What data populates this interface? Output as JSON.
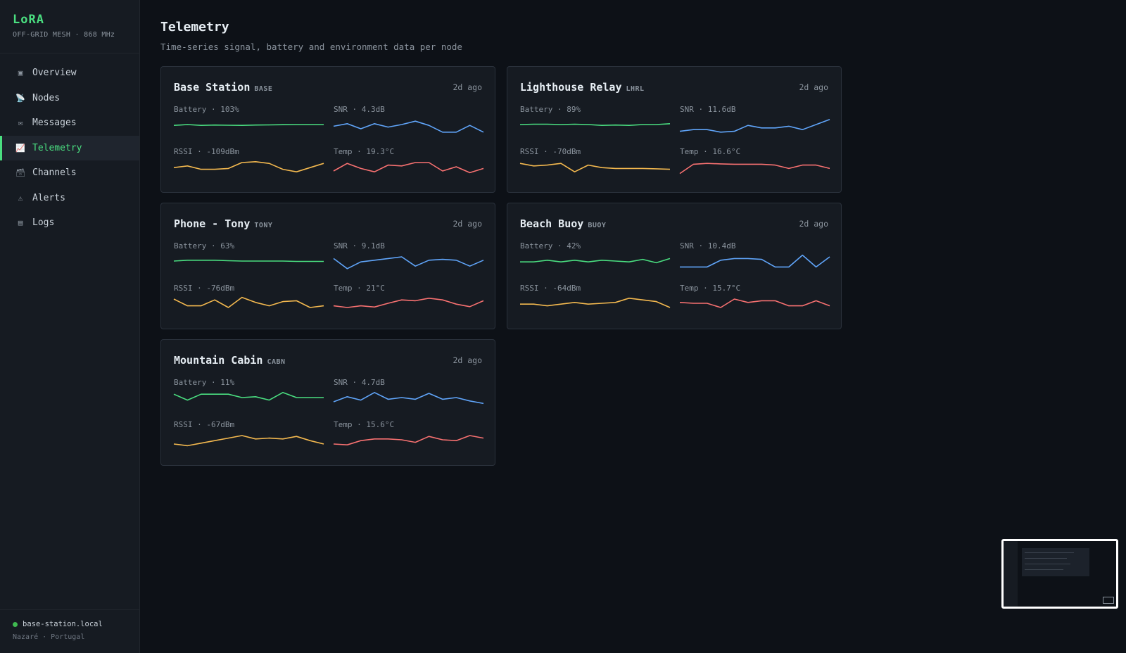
{
  "app": {
    "brand": "LoRA",
    "subtitle": "OFF-GRID MESH · 868 MHz",
    "host": "base-station.local",
    "location": "Nazaré · Portugal"
  },
  "nav": [
    {
      "key": "overview",
      "label": "Overview",
      "icon": "▣",
      "icon_name": "overview-icon"
    },
    {
      "key": "nodes",
      "label": "Nodes",
      "icon": "📡",
      "icon_name": "antenna-icon"
    },
    {
      "key": "messages",
      "label": "Messages",
      "icon": "✉",
      "icon_name": "envelope-icon"
    },
    {
      "key": "telemetry",
      "label": "Telemetry",
      "icon": "📈",
      "icon_name": "chart-icon",
      "active": true
    },
    {
      "key": "channels",
      "label": "Channels",
      "icon": "🗃",
      "icon_name": "channels-icon"
    },
    {
      "key": "alerts",
      "label": "Alerts",
      "icon": "⚠",
      "icon_name": "warning-icon"
    },
    {
      "key": "logs",
      "label": "Logs",
      "icon": "▤",
      "icon_name": "logs-icon"
    }
  ],
  "page": {
    "title": "Telemetry",
    "subtitle": "Time-series signal, battery and environment data per node"
  },
  "colors": {
    "battery": "#4ade80",
    "snr": "#60a5fa",
    "rssi": "#f4b94f",
    "temp": "#f87171",
    "accent": "#4ade80"
  },
  "nodes": [
    {
      "name": "Base Station",
      "tag": "BASE",
      "time": "2d ago",
      "battery": {
        "label": "Battery · 103%",
        "values": [
          0.55,
          0.5,
          0.55,
          0.53,
          0.54,
          0.55,
          0.53,
          0.52,
          0.51,
          0.5,
          0.5,
          0.5
        ]
      },
      "snr": {
        "label": "SNR · 4.3dB",
        "values": [
          0.6,
          0.45,
          0.75,
          0.45,
          0.65,
          0.5,
          0.3,
          0.55,
          0.95,
          0.95,
          0.55,
          0.95
        ]
      },
      "rssi": {
        "label": "RSSI · -109dBm",
        "values": [
          0.55,
          0.45,
          0.65,
          0.65,
          0.6,
          0.25,
          0.2,
          0.3,
          0.65,
          0.8,
          0.55,
          0.3
        ]
      },
      "temp": {
        "label": "Temp · 19.3°C",
        "values": [
          0.75,
          0.3,
          0.6,
          0.8,
          0.4,
          0.45,
          0.25,
          0.25,
          0.75,
          0.5,
          0.85,
          0.6
        ]
      }
    },
    {
      "name": "Lighthouse Relay",
      "tag": "LHRL",
      "time": "2d ago",
      "battery": {
        "label": "Battery · 89%",
        "values": [
          0.5,
          0.48,
          0.48,
          0.5,
          0.48,
          0.5,
          0.55,
          0.53,
          0.55,
          0.5,
          0.5,
          0.45
        ]
      },
      "snr": {
        "label": "SNR · 11.6dB",
        "values": [
          0.9,
          0.8,
          0.8,
          0.95,
          0.9,
          0.55,
          0.7,
          0.7,
          0.6,
          0.8,
          0.5,
          0.2
        ]
      },
      "rssi": {
        "label": "RSSI · -70dBm",
        "values": [
          0.3,
          0.45,
          0.4,
          0.3,
          0.8,
          0.4,
          0.55,
          0.6,
          0.6,
          0.6,
          0.62,
          0.65
        ]
      },
      "temp": {
        "label": "Temp · 16.6°C",
        "values": [
          0.9,
          0.35,
          0.3,
          0.33,
          0.35,
          0.35,
          0.35,
          0.4,
          0.6,
          0.4,
          0.4,
          0.6
        ]
      }
    },
    {
      "name": "Phone - Tony",
      "tag": "TONY",
      "time": "2d ago",
      "battery": {
        "label": "Battery · 63%",
        "values": [
          0.5,
          0.45,
          0.45,
          0.45,
          0.48,
          0.5,
          0.5,
          0.5,
          0.5,
          0.52,
          0.52,
          0.52
        ]
      },
      "snr": {
        "label": "SNR · 9.1dB",
        "values": [
          0.35,
          0.95,
          0.55,
          0.45,
          0.35,
          0.25,
          0.8,
          0.45,
          0.4,
          0.45,
          0.8,
          0.45
        ]
      },
      "rssi": {
        "label": "RSSI · -76dBm",
        "values": [
          0.25,
          0.65,
          0.65,
          0.3,
          0.75,
          0.15,
          0.45,
          0.65,
          0.4,
          0.35,
          0.75,
          0.65
        ]
      },
      "temp": {
        "label": "Temp · 21°C",
        "values": [
          0.65,
          0.75,
          0.65,
          0.72,
          0.5,
          0.3,
          0.35,
          0.2,
          0.3,
          0.55,
          0.7,
          0.35
        ]
      }
    },
    {
      "name": "Beach Buoy",
      "tag": "BUOY",
      "time": "2d ago",
      "battery": {
        "label": "Battery · 42%",
        "values": [
          0.55,
          0.55,
          0.45,
          0.55,
          0.45,
          0.55,
          0.45,
          0.5,
          0.55,
          0.4,
          0.6,
          0.35
        ]
      },
      "snr": {
        "label": "SNR · 10.4dB",
        "values": [
          0.85,
          0.85,
          0.85,
          0.45,
          0.35,
          0.35,
          0.4,
          0.85,
          0.85,
          0.15,
          0.85,
          0.25
        ]
      },
      "rssi": {
        "label": "RSSI · -64dBm",
        "values": [
          0.55,
          0.55,
          0.65,
          0.55,
          0.45,
          0.55,
          0.5,
          0.45,
          0.2,
          0.3,
          0.4,
          0.75
        ]
      },
      "temp": {
        "label": "Temp · 15.7°C",
        "values": [
          0.45,
          0.5,
          0.5,
          0.75,
          0.25,
          0.45,
          0.35,
          0.35,
          0.65,
          0.65,
          0.35,
          0.65
        ]
      }
    },
    {
      "name": "Mountain Cabin",
      "tag": "CABN",
      "time": "2d ago",
      "battery": {
        "label": "Battery · 11%",
        "values": [
          0.3,
          0.65,
          0.3,
          0.3,
          0.3,
          0.5,
          0.45,
          0.65,
          0.2,
          0.5,
          0.5,
          0.5
        ]
      },
      "snr": {
        "label": "SNR · 4.7dB",
        "values": [
          0.75,
          0.45,
          0.65,
          0.2,
          0.6,
          0.5,
          0.6,
          0.25,
          0.6,
          0.5,
          0.7,
          0.85
        ]
      },
      "rssi": {
        "label": "RSSI · -67dBm",
        "values": [
          0.75,
          0.85,
          0.7,
          0.55,
          0.4,
          0.25,
          0.45,
          0.4,
          0.45,
          0.3,
          0.55,
          0.75
        ]
      },
      "temp": {
        "label": "Temp · 15.6°C",
        "values": [
          0.75,
          0.8,
          0.55,
          0.45,
          0.45,
          0.5,
          0.65,
          0.3,
          0.5,
          0.55,
          0.25,
          0.4
        ]
      }
    }
  ]
}
